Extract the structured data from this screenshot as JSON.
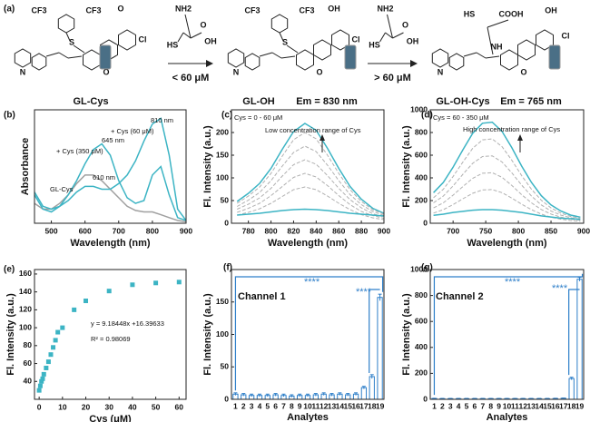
{
  "scheme": {
    "label": "(a)",
    "compounds": [
      {
        "name": "GL-Cys",
        "atoms": [
          "CF3",
          "CF3",
          "S",
          "O",
          "O",
          "Cl",
          "N"
        ]
      },
      {
        "name": "GL-OH",
        "emission": "Em = 830 nm",
        "atoms": [
          "CF3",
          "CF3",
          "S",
          "O",
          "OH",
          "Cl",
          "N"
        ]
      },
      {
        "name": "GL-OH-Cys",
        "emission": "Em = 765 nm",
        "atoms": [
          "HS",
          "COOH",
          "OH",
          "Cl",
          "NH",
          "O",
          "N"
        ]
      }
    ],
    "reagents": [
      {
        "condition": "< 60 μM",
        "atoms": [
          "NH2",
          "HS",
          "OH",
          "O"
        ]
      },
      {
        "condition": "> 60 μM",
        "atoms": [
          "NH2",
          "HS",
          "OH",
          "O"
        ]
      }
    ]
  },
  "chart_data": [
    {
      "type": "line",
      "label": "(b)",
      "xlabel": "Wavelength (nm)",
      "ylabel": "Absorbance",
      "xlim": [
        450,
        900
      ],
      "xticks": [
        500,
        600,
        700,
        800,
        900
      ],
      "ylim": [
        0,
        0.4
      ],
      "x": [
        450,
        475,
        500,
        525,
        550,
        575,
        600,
        625,
        650,
        675,
        700,
        725,
        750,
        775,
        800,
        825,
        850,
        875,
        900
      ],
      "series": [
        {
          "color": "#a0a0a0",
          "values": [
            0.07,
            0.05,
            0.05,
            0.07,
            0.1,
            0.14,
            0.17,
            0.17,
            0.15,
            0.12,
            0.09,
            0.06,
            0.045,
            0.04,
            0.04,
            0.03,
            0.02,
            0.01,
            0.005
          ]
        },
        {
          "color": "#3cb4c4",
          "values": [
            0.1,
            0.05,
            0.04,
            0.06,
            0.1,
            0.15,
            0.21,
            0.26,
            0.28,
            0.24,
            0.15,
            0.09,
            0.07,
            0.08,
            0.17,
            0.2,
            0.1,
            0.02,
            0.01
          ]
        },
        {
          "color": "#3cb4c4",
          "values": [
            0.11,
            0.06,
            0.05,
            0.06,
            0.08,
            0.11,
            0.13,
            0.13,
            0.12,
            0.12,
            0.14,
            0.17,
            0.22,
            0.29,
            0.35,
            0.37,
            0.24,
            0.05,
            0.01
          ]
        }
      ],
      "annotations": [
        "+ Cys (350 μM)",
        "645 nm",
        "+ Cys (60 μM)",
        "810 nm",
        "610 nm",
        "GL-Cys"
      ]
    },
    {
      "type": "line",
      "label": "(c)",
      "xlabel": "Wavelength (nm)",
      "ylabel": "Fl. Intensity (a.u.)",
      "xlim": [
        765,
        900
      ],
      "xticks": [
        780,
        800,
        820,
        840,
        860,
        880,
        900
      ],
      "ylim": [
        0,
        250
      ],
      "yticks": [
        0,
        50,
        100,
        150,
        200
      ],
      "x": [
        770,
        780,
        790,
        800,
        810,
        820,
        830,
        840,
        850,
        860,
        870,
        880,
        890,
        900
      ],
      "series": [
        {
          "color": "#3cb4c4",
          "style": "solid",
          "values": [
            48,
            66,
            88,
            121,
            163,
            202,
            220,
            205,
            165,
            121,
            81,
            53,
            33,
            22
          ]
        },
        {
          "color": "#b0b0b0",
          "style": "dashed",
          "values": [
            44,
            60,
            80,
            110,
            148,
            184,
            200,
            186,
            150,
            110,
            74,
            48,
            30,
            20
          ]
        },
        {
          "color": "#b0b0b0",
          "style": "dashed",
          "values": [
            37,
            51,
            68,
            94,
            126,
            156,
            170,
            158,
            128,
            94,
            63,
            41,
            26,
            17
          ]
        },
        {
          "color": "#b0b0b0",
          "style": "dashed",
          "values": [
            31,
            42,
            56,
            77,
            104,
            129,
            140,
            130,
            105,
            77,
            52,
            34,
            21,
            14
          ]
        },
        {
          "color": "#b0b0b0",
          "style": "dashed",
          "values": [
            24,
            33,
            44,
            61,
            81,
            101,
            110,
            102,
            83,
            61,
            41,
            26,
            17,
            11
          ]
        },
        {
          "color": "#b0b0b0",
          "style": "dashed",
          "values": [
            18,
            24,
            32,
            44,
            59,
            74,
            80,
            74,
            60,
            44,
            30,
            19,
            12,
            8
          ]
        },
        {
          "color": "#3cb4c4",
          "style": "solid",
          "values": [
            18,
            20,
            22,
            25,
            28,
            30,
            31,
            30,
            28,
            25,
            22,
            20,
            18,
            16
          ]
        }
      ],
      "annotations": [
        "Cys = 0 - 60 μM",
        "Low concentration range of Cys"
      ]
    },
    {
      "type": "line",
      "label": "(d)",
      "xlabel": "Wavelength (nm)",
      "ylabel": "Fl. Intensity (a.u.)",
      "xlim": [
        665,
        900
      ],
      "xticks": [
        700,
        750,
        800,
        850,
        900
      ],
      "ylim": [
        0,
        1000
      ],
      "yticks": [
        0,
        200,
        400,
        600,
        800,
        1000
      ],
      "x": [
        670,
        685,
        700,
        715,
        730,
        745,
        760,
        775,
        790,
        805,
        820,
        835,
        850,
        865,
        880,
        895
      ],
      "series": [
        {
          "color": "#3cb4c4",
          "style": "solid",
          "values": [
            270,
            360,
            495,
            648,
            792,
            882,
            891,
            810,
            666,
            504,
            360,
            243,
            162,
            108,
            72,
            54
          ]
        },
        {
          "color": "#b0b0b0",
          "style": "dashed",
          "values": [
            225,
            300,
            413,
            540,
            660,
            735,
            743,
            675,
            555,
            420,
            300,
            203,
            135,
            90,
            60,
            45
          ]
        },
        {
          "color": "#b0b0b0",
          "style": "dashed",
          "values": [
            180,
            240,
            330,
            432,
            528,
            588,
            594,
            540,
            444,
            336,
            240,
            162,
            108,
            72,
            48,
            36
          ]
        },
        {
          "color": "#b0b0b0",
          "style": "dashed",
          "values": [
            135,
            180,
            248,
            324,
            396,
            441,
            446,
            405,
            333,
            252,
            180,
            122,
            81,
            54,
            36,
            27
          ]
        },
        {
          "color": "#b0b0b0",
          "style": "dashed",
          "values": [
            90,
            120,
            165,
            216,
            264,
            294,
            297,
            270,
            222,
            168,
            120,
            81,
            54,
            36,
            24,
            18
          ]
        },
        {
          "color": "#3cb4c4",
          "style": "solid",
          "values": [
            70,
            80,
            95,
            105,
            115,
            120,
            120,
            115,
            105,
            95,
            80,
            65,
            55,
            45,
            40,
            35
          ]
        }
      ],
      "annotations": [
        "Cys = 60 - 350 μM",
        "High concentration range of Cys"
      ]
    },
    {
      "type": "scatter",
      "label": "(e)",
      "xlabel": "Cys (μM)",
      "ylabel": "Fl. Intensity (a.u.)",
      "xlim": [
        -2,
        63
      ],
      "xticks": [
        0,
        10,
        20,
        30,
        40,
        50,
        60
      ],
      "ylim": [
        20,
        165
      ],
      "yticks": [
        40,
        60,
        80,
        100,
        120,
        140,
        160
      ],
      "x": [
        0,
        0.5,
        1,
        1.5,
        2,
        3,
        4,
        5,
        6,
        7,
        8,
        10,
        15,
        20,
        30,
        40,
        50,
        60
      ],
      "series": [
        {
          "color": "#3cb4c4",
          "values": [
            30,
            35,
            40,
            43,
            48,
            55,
            62,
            70,
            78,
            86,
            95,
            100,
            120,
            130,
            141,
            148,
            150,
            151
          ]
        }
      ],
      "annotations": [
        "y = 9.18448x +16.39633",
        "R² = 0.98069"
      ]
    },
    {
      "type": "bar",
      "label": "(f)",
      "xlabel": "Analytes",
      "ylabel": "Fl. Intensity (a.u.)",
      "color": "#2e7fc9",
      "categories": [
        "1",
        "2",
        "3",
        "4",
        "5",
        "6",
        "7",
        "8",
        "9",
        "10",
        "11",
        "12",
        "13",
        "14",
        "15",
        "16",
        "17",
        "18",
        "19"
      ],
      "ylim": [
        0,
        200
      ],
      "yticks": [
        0,
        50,
        100,
        150
      ],
      "values": [
        8,
        7,
        6,
        6,
        6,
        7,
        6,
        5,
        6,
        6,
        7,
        8,
        7,
        8,
        7,
        8,
        18,
        35,
        157
      ],
      "errors": [
        2,
        2,
        2,
        2,
        2,
        2,
        2,
        2,
        2,
        2,
        2,
        2,
        2,
        2,
        2,
        2,
        2,
        3,
        5
      ],
      "annotations": [
        "Channel 1",
        "****",
        "****"
      ]
    },
    {
      "type": "bar",
      "label": "(g)",
      "xlabel": "Analytes",
      "ylabel": "Fl. Intensity (a.u.)",
      "color": "#2e7fc9",
      "categories": [
        "1",
        "2",
        "3",
        "4",
        "5",
        "6",
        "7",
        "8",
        "9",
        "10",
        "11",
        "12",
        "13",
        "14",
        "15",
        "16",
        "17",
        "18",
        "19"
      ],
      "ylim": [
        0,
        1000
      ],
      "yticks": [
        0,
        200,
        400,
        600,
        800,
        1000
      ],
      "values": [
        6,
        5,
        5,
        5,
        5,
        5,
        5,
        5,
        5,
        5,
        5,
        5,
        5,
        5,
        5,
        6,
        8,
        160,
        925
      ],
      "errors": [
        2,
        2,
        2,
        2,
        2,
        2,
        2,
        2,
        2,
        2,
        2,
        2,
        2,
        2,
        2,
        2,
        2,
        10,
        15
      ],
      "annotations": [
        "Channel 2",
        "****",
        "****"
      ]
    }
  ]
}
